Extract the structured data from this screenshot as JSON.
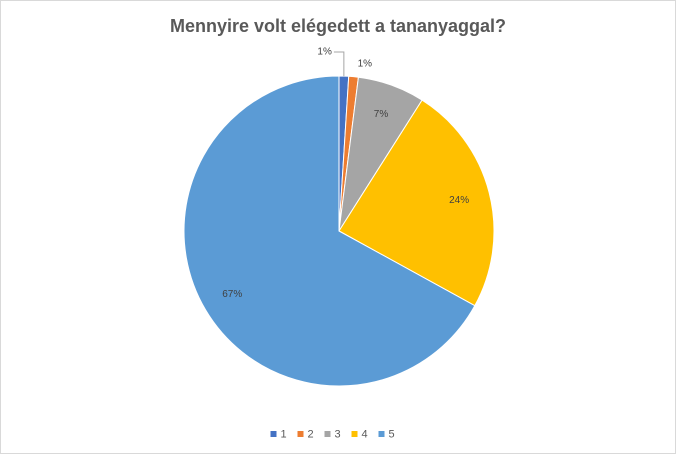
{
  "chart_data": {
    "type": "pie",
    "title": "Mennyire volt elégedett a tananyaggal?",
    "categories": [
      "1",
      "2",
      "3",
      "4",
      "5"
    ],
    "values": [
      1,
      1,
      7,
      24,
      67
    ],
    "value_labels": [
      "1%",
      "1%",
      "7%",
      "24%",
      "67%"
    ],
    "colors": [
      "#4472c4",
      "#ed7d31",
      "#a5a5a5",
      "#ffc000",
      "#5b9bd5"
    ],
    "legend": "bottom"
  }
}
